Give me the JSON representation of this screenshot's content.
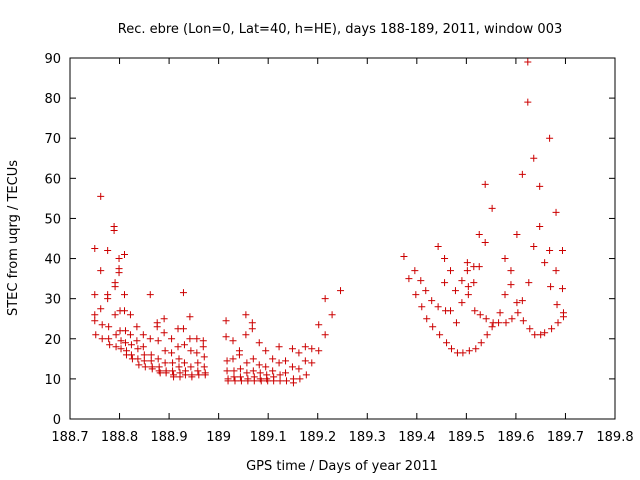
{
  "chart_data": {
    "type": "scatter",
    "title": "Rec. ebre (Lon=0, Lat=40, h=HE), days 188-189, 2011, window 003",
    "xlabel": "GPS time / Days of year 2011",
    "ylabel": "STEC from uqrg / TECUs",
    "xlim": [
      188.7,
      189.8
    ],
    "ylim": [
      0,
      90
    ],
    "xticks": [
      188.7,
      188.8,
      188.9,
      189.0,
      189.1,
      189.2,
      189.3,
      189.4,
      189.5,
      189.6,
      189.7,
      189.8
    ],
    "xtick_labels": [
      "188.7",
      "188.8",
      "188.9",
      "189",
      "189.1",
      "189.2",
      "189.3",
      "189.4",
      "189.5",
      "189.6",
      "189.7",
      "189.8"
    ],
    "yticks": [
      0,
      10,
      20,
      30,
      40,
      50,
      60,
      70,
      80,
      90
    ],
    "ytick_labels": [
      "0",
      "10",
      "20",
      "30",
      "40",
      "50",
      "60",
      "70",
      "80",
      "90"
    ],
    "grid": false,
    "marker": "+",
    "color": "#cc0000",
    "series": [
      {
        "points": [
          [
            188.75,
            42.5
          ],
          [
            188.75,
            31
          ],
          [
            188.75,
            26
          ],
          [
            188.75,
            24.5
          ],
          [
            188.752,
            21
          ],
          [
            188.762,
            55.5
          ],
          [
            188.762,
            37
          ],
          [
            188.762,
            27.5
          ],
          [
            188.765,
            23.5
          ],
          [
            188.765,
            20
          ],
          [
            188.776,
            42
          ],
          [
            188.776,
            31
          ],
          [
            188.776,
            30
          ],
          [
            188.778,
            23
          ],
          [
            188.778,
            20
          ],
          [
            188.78,
            18.5
          ],
          [
            188.789,
            48
          ],
          [
            188.789,
            47
          ],
          [
            188.791,
            34
          ],
          [
            188.791,
            33
          ],
          [
            188.791,
            26
          ],
          [
            188.793,
            21
          ],
          [
            188.793,
            18
          ],
          [
            188.799,
            40
          ],
          [
            188.799,
            37.5
          ],
          [
            188.799,
            36.5
          ],
          [
            188.801,
            27
          ],
          [
            188.801,
            22
          ],
          [
            188.803,
            19.5
          ],
          [
            188.803,
            17.5
          ],
          [
            188.81,
            41
          ],
          [
            188.81,
            31
          ],
          [
            188.81,
            27
          ],
          [
            188.812,
            22
          ],
          [
            188.812,
            19
          ],
          [
            188.814,
            17
          ],
          [
            188.814,
            16
          ],
          [
            188.822,
            26
          ],
          [
            188.822,
            21
          ],
          [
            188.824,
            18.5
          ],
          [
            188.824,
            16
          ],
          [
            188.826,
            15
          ],
          [
            188.835,
            23
          ],
          [
            188.835,
            19.5
          ],
          [
            188.837,
            17.5
          ],
          [
            188.837,
            15
          ],
          [
            188.839,
            13.5
          ],
          [
            188.848,
            21
          ],
          [
            188.848,
            18
          ],
          [
            188.85,
            16
          ],
          [
            188.85,
            14.5
          ],
          [
            188.852,
            13
          ],
          [
            188.862,
            31
          ],
          [
            188.862,
            20
          ],
          [
            188.864,
            16
          ],
          [
            188.864,
            14.5
          ],
          [
            188.866,
            13
          ],
          [
            188.866,
            12.5
          ],
          [
            188.876,
            24
          ],
          [
            188.876,
            23
          ],
          [
            188.878,
            19.5
          ],
          [
            188.878,
            15
          ],
          [
            188.88,
            13
          ],
          [
            188.88,
            12
          ],
          [
            188.882,
            11.5
          ],
          [
            188.89,
            25
          ],
          [
            188.89,
            21.5
          ],
          [
            188.892,
            17
          ],
          [
            188.892,
            14
          ],
          [
            188.894,
            12
          ],
          [
            188.894,
            11.5
          ],
          [
            188.905,
            20
          ],
          [
            188.905,
            16.5
          ],
          [
            188.907,
            14
          ],
          [
            188.907,
            12
          ],
          [
            188.909,
            11
          ],
          [
            188.909,
            10.5
          ],
          [
            188.918,
            22.5
          ],
          [
            188.918,
            18
          ],
          [
            188.92,
            15
          ],
          [
            188.92,
            13
          ],
          [
            188.922,
            11.5
          ],
          [
            188.922,
            10.5
          ],
          [
            188.929,
            31.5
          ],
          [
            188.929,
            22.5
          ],
          [
            188.931,
            18.5
          ],
          [
            188.931,
            14
          ],
          [
            188.933,
            12
          ],
          [
            188.933,
            11
          ],
          [
            188.942,
            25.5
          ],
          [
            188.942,
            20
          ],
          [
            188.944,
            17
          ],
          [
            188.944,
            13
          ],
          [
            188.946,
            11
          ],
          [
            188.946,
            10.5
          ],
          [
            188.956,
            20
          ],
          [
            188.956,
            16.5
          ],
          [
            188.958,
            14
          ],
          [
            188.958,
            12
          ],
          [
            188.96,
            11
          ],
          [
            188.969,
            19.5
          ],
          [
            188.969,
            18
          ],
          [
            188.971,
            15.5
          ],
          [
            188.971,
            13
          ],
          [
            188.973,
            11.5
          ],
          [
            188.973,
            11
          ],
          [
            189.015,
            24.5
          ],
          [
            189.015,
            20.5
          ],
          [
            189.017,
            14.5
          ],
          [
            189.017,
            12
          ],
          [
            189.019,
            10
          ],
          [
            189.019,
            9.5
          ],
          [
            189.029,
            19.5
          ],
          [
            189.029,
            15
          ],
          [
            189.031,
            12
          ],
          [
            189.031,
            10.5
          ],
          [
            189.033,
            9.5
          ],
          [
            189.042,
            17
          ],
          [
            189.042,
            16
          ],
          [
            189.044,
            12.5
          ],
          [
            189.044,
            10.5
          ],
          [
            189.046,
            9.5
          ],
          [
            189.055,
            26
          ],
          [
            189.055,
            21
          ],
          [
            189.057,
            14
          ],
          [
            189.057,
            11.5
          ],
          [
            189.059,
            10
          ],
          [
            189.059,
            9.5
          ],
          [
            189.068,
            24
          ],
          [
            189.068,
            22.5
          ],
          [
            189.07,
            15
          ],
          [
            189.07,
            12
          ],
          [
            189.072,
            10.5
          ],
          [
            189.072,
            9.5
          ],
          [
            189.082,
            19
          ],
          [
            189.082,
            13.5
          ],
          [
            189.084,
            11.5
          ],
          [
            189.084,
            10
          ],
          [
            189.086,
            9.5
          ],
          [
            189.095,
            17
          ],
          [
            189.095,
            13
          ],
          [
            189.097,
            11
          ],
          [
            189.097,
            10
          ],
          [
            189.099,
            9.5
          ],
          [
            189.109,
            15
          ],
          [
            189.109,
            12
          ],
          [
            189.111,
            10.5
          ],
          [
            189.111,
            9.5
          ],
          [
            189.122,
            18
          ],
          [
            189.122,
            14
          ],
          [
            189.124,
            11
          ],
          [
            189.124,
            9.5
          ],
          [
            189.135,
            14.5
          ],
          [
            189.135,
            11.5
          ],
          [
            189.137,
            9.5
          ],
          [
            189.149,
            17.5
          ],
          [
            189.149,
            13
          ],
          [
            189.151,
            10
          ],
          [
            189.151,
            9
          ],
          [
            189.162,
            16.5
          ],
          [
            189.162,
            12.5
          ],
          [
            189.164,
            10
          ],
          [
            189.175,
            18
          ],
          [
            189.175,
            14.5
          ],
          [
            189.177,
            11
          ],
          [
            189.188,
            17.5
          ],
          [
            189.188,
            14
          ],
          [
            189.202,
            23.5
          ],
          [
            189.202,
            17
          ],
          [
            189.215,
            30
          ],
          [
            189.215,
            21
          ],
          [
            189.229,
            26
          ],
          [
            189.246,
            32
          ],
          [
            189.374,
            40.5
          ],
          [
            189.384,
            35
          ],
          [
            189.396,
            37
          ],
          [
            189.398,
            31
          ],
          [
            189.408,
            34.5
          ],
          [
            189.41,
            28
          ],
          [
            189.418,
            32
          ],
          [
            189.42,
            25
          ],
          [
            189.43,
            29.5
          ],
          [
            189.432,
            23
          ],
          [
            189.443,
            43
          ],
          [
            189.443,
            28
          ],
          [
            189.446,
            21
          ],
          [
            189.456,
            40
          ],
          [
            189.456,
            34
          ],
          [
            189.458,
            27
          ],
          [
            189.46,
            19
          ],
          [
            189.468,
            37
          ],
          [
            189.468,
            27
          ],
          [
            189.47,
            17.5
          ],
          [
            189.478,
            32
          ],
          [
            189.48,
            24
          ],
          [
            189.482,
            16.5
          ],
          [
            189.491,
            34.5
          ],
          [
            189.491,
            29
          ],
          [
            189.493,
            16.5
          ],
          [
            189.502,
            39
          ],
          [
            189.502,
            37
          ],
          [
            189.504,
            33
          ],
          [
            189.504,
            31
          ],
          [
            189.506,
            17
          ],
          [
            189.515,
            38
          ],
          [
            189.515,
            34
          ],
          [
            189.517,
            27
          ],
          [
            189.519,
            17.5
          ],
          [
            189.526,
            46
          ],
          [
            189.526,
            38
          ],
          [
            189.528,
            26
          ],
          [
            189.53,
            19
          ],
          [
            189.538,
            58.5
          ],
          [
            189.538,
            44
          ],
          [
            189.54,
            25
          ],
          [
            189.542,
            21
          ],
          [
            189.552,
            52.5
          ],
          [
            189.552,
            23
          ],
          [
            189.554,
            24
          ],
          [
            189.565,
            24
          ],
          [
            189.568,
            26.5
          ],
          [
            189.578,
            40
          ],
          [
            189.578,
            31
          ],
          [
            189.58,
            24
          ],
          [
            189.59,
            37
          ],
          [
            189.59,
            33.5
          ],
          [
            189.592,
            25
          ],
          [
            189.602,
            46
          ],
          [
            189.602,
            29
          ],
          [
            189.604,
            26.5
          ],
          [
            189.613,
            61
          ],
          [
            189.613,
            29.5
          ],
          [
            189.615,
            24.5
          ],
          [
            189.624,
            89
          ],
          [
            189.624,
            79
          ],
          [
            189.626,
            34
          ],
          [
            189.628,
            22.5
          ],
          [
            189.636,
            65
          ],
          [
            189.636,
            43
          ],
          [
            189.638,
            21
          ],
          [
            189.648,
            58
          ],
          [
            189.648,
            48
          ],
          [
            189.65,
            21
          ],
          [
            189.658,
            39
          ],
          [
            189.658,
            21.5
          ],
          [
            189.668,
            70
          ],
          [
            189.668,
            42
          ],
          [
            189.67,
            33
          ],
          [
            189.672,
            22.5
          ],
          [
            189.681,
            51.5
          ],
          [
            189.681,
            37
          ],
          [
            189.683,
            28.5
          ],
          [
            189.685,
            24
          ],
          [
            189.694,
            42
          ],
          [
            189.694,
            32.5
          ],
          [
            189.696,
            26.5
          ],
          [
            189.696,
            25.5
          ]
        ]
      }
    ]
  }
}
